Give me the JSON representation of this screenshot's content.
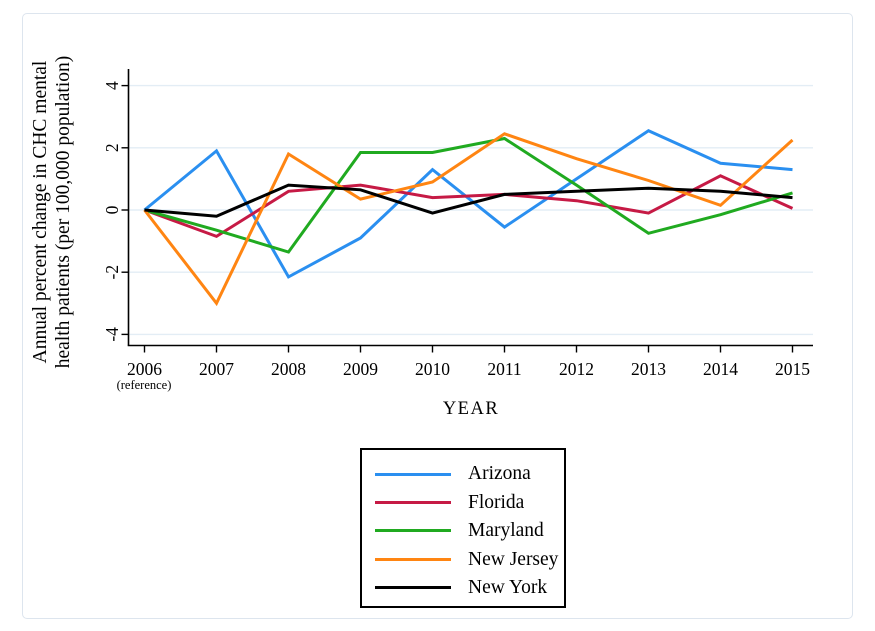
{
  "figure": {
    "y_axis_title_line1": "Annual percent change in CHC mental",
    "y_axis_title_line2": "health patients (per 100,000 population)",
    "x_axis_title": "YEAR",
    "x_reference_note": "(reference)"
  },
  "chart_data": {
    "type": "line",
    "x": [
      2006,
      2007,
      2008,
      2009,
      2010,
      2011,
      2012,
      2013,
      2014,
      2015
    ],
    "x_tick_labels": [
      "2006",
      "2007",
      "2008",
      "2009",
      "2010",
      "2011",
      "2012",
      "2013",
      "2014",
      "2015"
    ],
    "xlabel": "YEAR",
    "ylabel": "Annual percent change in CHC mental health patients (per 100,000 population)",
    "y_ticks": [
      -4,
      -2,
      0,
      2,
      4
    ],
    "y_tick_labels": [
      "-4",
      "-2",
      "0",
      "2",
      "4"
    ],
    "ylim": [
      -4.4,
      4.5
    ],
    "grid": true,
    "grid_color": "#e3edf5",
    "axis_color": "#000000",
    "legend_position": "bottom-center",
    "series": [
      {
        "name": "Arizona",
        "color": "#2a8ff0",
        "values": [
          0,
          1.9,
          -2.15,
          -0.9,
          1.3,
          -0.55,
          1.0,
          2.55,
          1.5,
          1.3
        ]
      },
      {
        "name": "Florida",
        "color": "#c61a45",
        "values": [
          0,
          -0.85,
          0.6,
          0.8,
          0.4,
          0.5,
          0.3,
          -0.1,
          1.1,
          0.05
        ]
      },
      {
        "name": "Maryland",
        "color": "#20aa20",
        "values": [
          0,
          -0.65,
          -1.35,
          1.85,
          1.85,
          2.3,
          0.8,
          -0.75,
          -0.15,
          0.55
        ]
      },
      {
        "name": "New Jersey",
        "color": "#ff8512",
        "values": [
          0,
          -3.0,
          1.8,
          0.35,
          0.9,
          2.45,
          1.65,
          0.95,
          0.15,
          2.25
        ]
      },
      {
        "name": "New York",
        "color": "#000000",
        "values": [
          0,
          -0.2,
          0.8,
          0.65,
          -0.1,
          0.5,
          0.6,
          0.7,
          0.6,
          0.4
        ]
      }
    ]
  }
}
